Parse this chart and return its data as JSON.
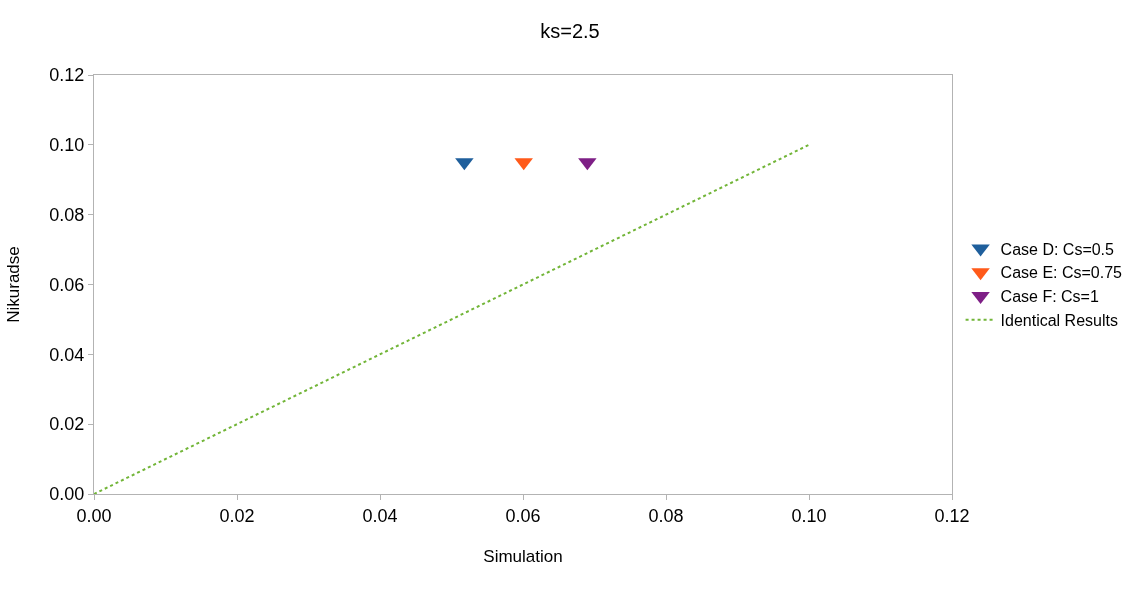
{
  "chart_data": {
    "type": "scatter",
    "title": "ks=2.5",
    "xlabel": "Simulation",
    "ylabel": "Nikuradse",
    "xlim": [
      0,
      0.12
    ],
    "xticks": [
      {
        "value": 0,
        "label": "0.00"
      },
      {
        "value": 0.02,
        "label": "0.02"
      },
      {
        "value": 0.04,
        "label": "0.04"
      },
      {
        "value": 0.06,
        "label": "0.06"
      },
      {
        "value": 0.08,
        "label": "0.08"
      },
      {
        "value": 0.1,
        "label": "0.10"
      },
      {
        "value": 0.12,
        "label": "0.12"
      }
    ],
    "ylim": [
      0,
      0.12
    ],
    "yticks": [
      {
        "value": 0,
        "label": "0.00"
      },
      {
        "value": 0.02,
        "label": "0.02"
      },
      {
        "value": 0.04,
        "label": "0.04"
      },
      {
        "value": 0.06,
        "label": "0.06"
      },
      {
        "value": 0.08,
        "label": "0.08"
      },
      {
        "value": 0.1,
        "label": "0.10"
      },
      {
        "value": 0.12,
        "label": "0.12"
      }
    ],
    "legend": "right",
    "marker": "triangle",
    "series": [
      {
        "name": "Case D: Cs=0.5",
        "color": "#1f5f9c",
        "x": [
          0.0518
        ],
        "values": [
          0.095
        ]
      },
      {
        "name": "Case E: Cs=0.75",
        "color": "#ff5a1a",
        "x": [
          0.0601
        ],
        "values": [
          0.095
        ]
      },
      {
        "name": "Case F: Cs=1",
        "color": "#7e1f86",
        "x": [
          0.069
        ],
        "values": [
          0.095
        ]
      },
      {
        "name": "Identical Results",
        "type": "line",
        "color": "#72b538",
        "marker": "none",
        "line_style": "dotted",
        "x": [
          0,
          0.1
        ],
        "values": [
          0,
          0.1
        ]
      }
    ]
  }
}
